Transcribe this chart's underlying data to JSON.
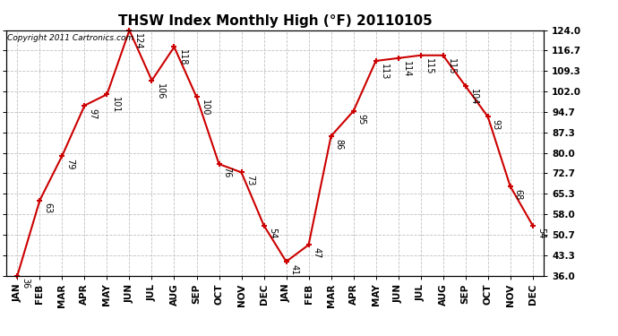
{
  "title": "THSW Index Monthly High (°F) 20110105",
  "copyright": "Copyright 2011 Cartronics.com",
  "months": [
    "JAN",
    "FEB",
    "MAR",
    "APR",
    "MAY",
    "JUN",
    "JUL",
    "AUG",
    "SEP",
    "OCT",
    "NOV",
    "DEC",
    "JAN",
    "FEB",
    "MAR",
    "APR",
    "MAY",
    "JUN",
    "JUL",
    "AUG",
    "SEP",
    "OCT",
    "NOV",
    "DEC"
  ],
  "values": [
    36,
    63,
    79,
    97,
    101,
    124,
    106,
    118,
    100,
    76,
    73,
    54,
    41,
    47,
    86,
    95,
    113,
    114,
    115,
    115,
    104,
    93,
    68,
    54
  ],
  "ylim": [
    36.0,
    124.0
  ],
  "yticks": [
    36.0,
    43.3,
    50.7,
    58.0,
    65.3,
    72.7,
    80.0,
    87.3,
    94.7,
    102.0,
    109.3,
    116.7,
    124.0
  ],
  "ytick_labels": [
    "36.0",
    "43.3",
    "50.7",
    "58.0",
    "65.3",
    "72.7",
    "80.0",
    "87.3",
    "94.7",
    "102.0",
    "109.3",
    "116.7",
    "124.0"
  ],
  "line_color": "#cc0000",
  "marker_color": "#cc0000",
  "bg_color": "#ffffff",
  "grid_color": "#c0c0c0",
  "title_fontsize": 11,
  "label_fontsize": 7,
  "copyright_fontsize": 6.5,
  "tick_fontsize": 7.5
}
